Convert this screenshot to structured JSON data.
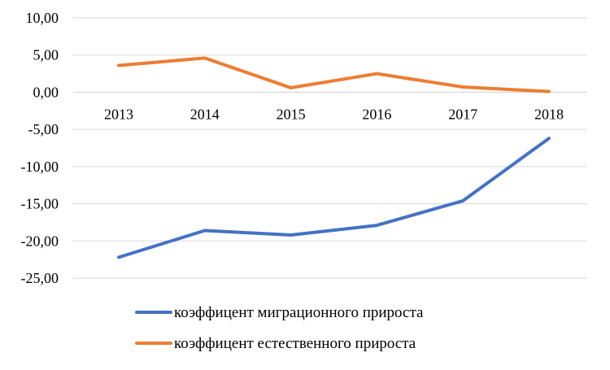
{
  "chart_data": {
    "type": "line",
    "title": "",
    "xlabel": "",
    "ylabel": "",
    "categories": [
      "2013",
      "2014",
      "2015",
      "2016",
      "2017",
      "2018"
    ],
    "y_ticks": [
      "10,00",
      "5,00",
      "0,00",
      "-5,00",
      "-10,00",
      "-15,00",
      "-20,00",
      "-25,00"
    ],
    "ylim": [
      -25,
      10
    ],
    "grid": true,
    "legend_position": "bottom",
    "series": [
      {
        "name": "коэффицент миграционного прироста",
        "color": "#4472C4",
        "values": [
          -22.2,
          -18.6,
          -19.2,
          -17.9,
          -14.6,
          -6.2
        ]
      },
      {
        "name": "коэффицент естественного прироста",
        "color": "#ED7D31",
        "values": [
          3.6,
          4.6,
          0.6,
          2.5,
          0.7,
          0.1
        ]
      }
    ]
  }
}
